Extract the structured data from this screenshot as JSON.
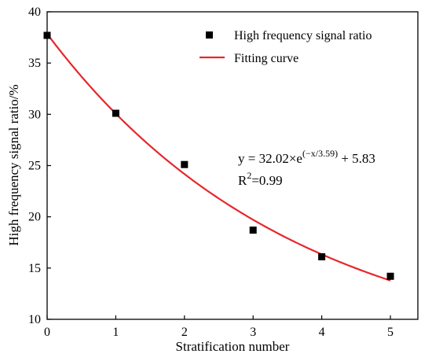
{
  "chart_data": {
    "type": "scatter",
    "xlabel": "Stratification number",
    "ylabel": "High frequency signal ratio/%",
    "xlim": [
      0,
      5.4
    ],
    "ylim": [
      10,
      40
    ],
    "x_ticks": [
      "0",
      "1",
      "2",
      "3",
      "4",
      "5"
    ],
    "y_ticks": [
      "10",
      "15",
      "20",
      "25",
      "30",
      "35",
      "40"
    ],
    "grid": false,
    "legend_position": "top-right",
    "series": [
      {
        "name": "High frequency signal ratio",
        "marker": "square",
        "color": "#000000",
        "points": [
          {
            "x": 0,
            "y": 37.7
          },
          {
            "x": 1,
            "y": 30.1
          },
          {
            "x": 2,
            "y": 25.1
          },
          {
            "x": 3,
            "y": 18.7
          },
          {
            "x": 4,
            "y": 16.1
          },
          {
            "x": 5,
            "y": 14.2
          }
        ]
      },
      {
        "name": "Fitting curve",
        "kind": "line",
        "color": "#e8262a",
        "model": {
          "a": 32.02,
          "t": 3.59,
          "c": 5.83,
          "x_range": [
            0,
            5
          ]
        }
      }
    ],
    "annotations": {
      "equation_main": "y = 32.02×e",
      "equation_exponent": "(−x/3.59)",
      "equation_tail": " + 5.83",
      "r2_label": "R",
      "r2_sup": "2",
      "r2_value": "=0.99"
    }
  }
}
